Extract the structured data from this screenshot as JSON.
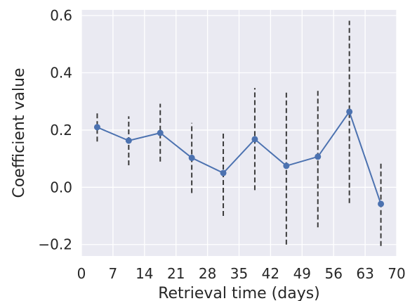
{
  "chart_data": {
    "type": "line",
    "xlabel": "Retrieval time (days)",
    "ylabel": "Coefficient value",
    "xlim": [
      0,
      70
    ],
    "ylim": [
      -0.24,
      0.62
    ],
    "xticks": [
      0,
      7,
      14,
      21,
      28,
      35,
      42,
      49,
      56,
      63,
      70
    ],
    "yticks": [
      -0.2,
      0.0,
      0.2,
      0.4,
      0.6
    ],
    "ytick_labels": [
      "−0.2",
      "0.0",
      "0.2",
      "0.4",
      "0.6"
    ],
    "grid": true,
    "background": "#eaeaf2",
    "series": [
      {
        "color": "#4c72b0",
        "x": [
          3.5,
          10.5,
          17.5,
          24.5,
          31.5,
          38.5,
          45.5,
          52.5,
          59.5,
          66.5
        ],
        "values": [
          0.21,
          0.163,
          0.19,
          0.103,
          0.05,
          0.168,
          0.075,
          0.107,
          0.264,
          -0.058
        ],
        "ci_low": [
          0.16,
          0.077,
          0.09,
          -0.02,
          -0.1,
          -0.01,
          -0.2,
          -0.14,
          -0.055,
          -0.205
        ],
        "ci_high": [
          0.26,
          0.248,
          0.292,
          0.225,
          0.196,
          0.347,
          0.34,
          0.345,
          0.582,
          0.088
        ]
      }
    ],
    "errorbar_color": "#3a3a3a",
    "errorbar_style": "dashed"
  }
}
